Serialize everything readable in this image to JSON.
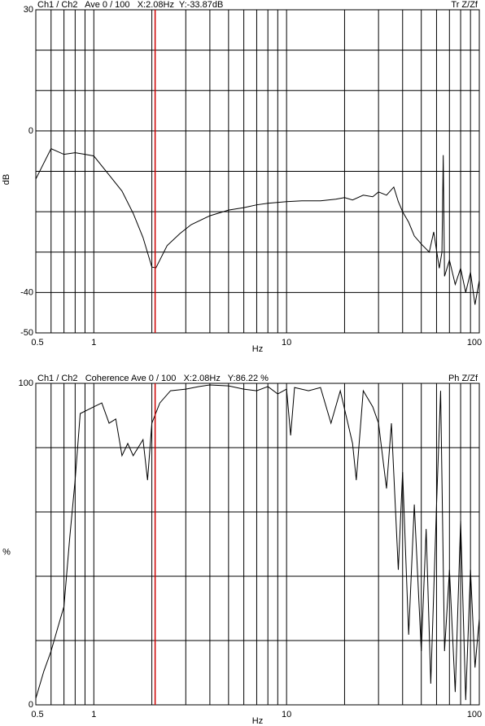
{
  "chart_data": [
    {
      "type": "line",
      "header_left": "Ch1 / Ch2   Ave 0 / 100   X:2.08Hz  Y:-33.87dB",
      "header_right": "Tr Z/Zf",
      "y_label": "dB",
      "x_label": "Hz",
      "log_x": true,
      "xlim": [
        0.5,
        100
      ],
      "xticks": [
        0.5,
        1,
        10,
        100
      ],
      "xgrid": [
        0.5,
        0.6,
        0.7,
        0.8,
        0.9,
        1,
        2,
        3,
        4,
        5,
        6,
        7,
        8,
        9,
        10,
        20,
        30,
        40,
        50,
        60,
        70,
        80,
        90,
        100
      ],
      "ylim": [
        -50,
        30
      ],
      "yticks": [
        30,
        0,
        -40,
        -50
      ],
      "ygrid": [
        30,
        20,
        10,
        0,
        -10,
        -20,
        -30,
        -40,
        -50
      ],
      "cursor_x": 2.08,
      "cursor_color": "#cc0000",
      "x": [
        0.5,
        0.6,
        0.7,
        0.8,
        0.9,
        1.0,
        1.2,
        1.4,
        1.6,
        1.8,
        2.0,
        2.1,
        2.4,
        2.8,
        3.2,
        4,
        5,
        6,
        7,
        8,
        10,
        12,
        15,
        18,
        20,
        22,
        25,
        28,
        30,
        33,
        36,
        38,
        40,
        43,
        46,
        50,
        55,
        58,
        62,
        64,
        65,
        66,
        70,
        75,
        80,
        85,
        90,
        95,
        100
      ],
      "series": [
        {
          "color": "#000000",
          "values": [
            -11.9,
            -4.4,
            -5.8,
            -5.4,
            -5.8,
            -6.2,
            -10.9,
            -14.9,
            -20.4,
            -26.4,
            -33.7,
            -33.9,
            -28.4,
            -25.4,
            -23.2,
            -21,
            -19.6,
            -19,
            -18.3,
            -17.9,
            -17.5,
            -17.3,
            -17.3,
            -16.9,
            -16.5,
            -17.1,
            -15.9,
            -16.3,
            -15.1,
            -15.9,
            -13.9,
            -17.5,
            -20,
            -22.6,
            -26,
            -28,
            -30,
            -25,
            -34,
            -30,
            -6,
            -36,
            -32,
            -38,
            -34,
            -40,
            -35,
            -43,
            -37
          ]
        }
      ]
    },
    {
      "type": "line",
      "header_left": "Ch1 / Ch2   Coherence Ave 0 / 100   X:2.08Hz   Y:86.22 %",
      "header_right": "Ph Z/Zf",
      "y_label": "%",
      "x_label": "Hz",
      "log_x": true,
      "xlim": [
        0.5,
        100
      ],
      "xticks": [
        0.5,
        1,
        10,
        100
      ],
      "xgrid": [
        0.5,
        0.6,
        0.7,
        0.8,
        0.9,
        1,
        2,
        3,
        4,
        5,
        6,
        7,
        8,
        9,
        10,
        20,
        30,
        40,
        50,
        60,
        70,
        80,
        90,
        100
      ],
      "ylim": [
        0,
        100
      ],
      "yticks": [
        100,
        0
      ],
      "ygrid": [
        100,
        80,
        60,
        40,
        20,
        0
      ],
      "cursor_x": 2.08,
      "cursor_color": "#cc0000",
      "x": [
        0.5,
        0.55,
        0.6,
        0.65,
        0.7,
        0.75,
        0.8,
        0.85,
        1.0,
        1.1,
        1.2,
        1.3,
        1.4,
        1.5,
        1.6,
        1.8,
        1.9,
        2.0,
        2.2,
        2.5,
        3,
        3.5,
        4,
        5,
        6,
        7,
        8,
        9,
        10,
        10.5,
        11,
        13,
        15,
        17,
        19,
        22,
        23,
        25,
        28,
        30,
        33,
        35,
        38,
        40,
        43,
        46,
        50,
        53,
        56,
        60,
        63,
        66,
        70,
        75,
        80,
        85,
        90,
        95,
        100
      ],
      "series": [
        {
          "color": "#000000",
          "values": [
            2,
            10.4,
            16.7,
            24,
            30.6,
            52,
            70,
            90.6,
            92.7,
            93.9,
            87.6,
            88.9,
            77.5,
            81.3,
            77.5,
            82.5,
            69.9,
            87.6,
            93.9,
            97.7,
            98.2,
            99,
            99.5,
            99.2,
            98.2,
            97.7,
            99,
            96.7,
            98.2,
            83.8,
            98.7,
            97.7,
            98.7,
            87.6,
            97.7,
            81.3,
            69.9,
            97.7,
            92.7,
            87.6,
            67.3,
            87.6,
            42,
            72.4,
            21.8,
            62.3,
            16.7,
            54.7,
            6.6,
            62.3,
            97.7,
            16.7,
            42,
            4,
            57.2,
            1.5,
            42,
            11.6,
            26.8
          ]
        }
      ]
    }
  ]
}
